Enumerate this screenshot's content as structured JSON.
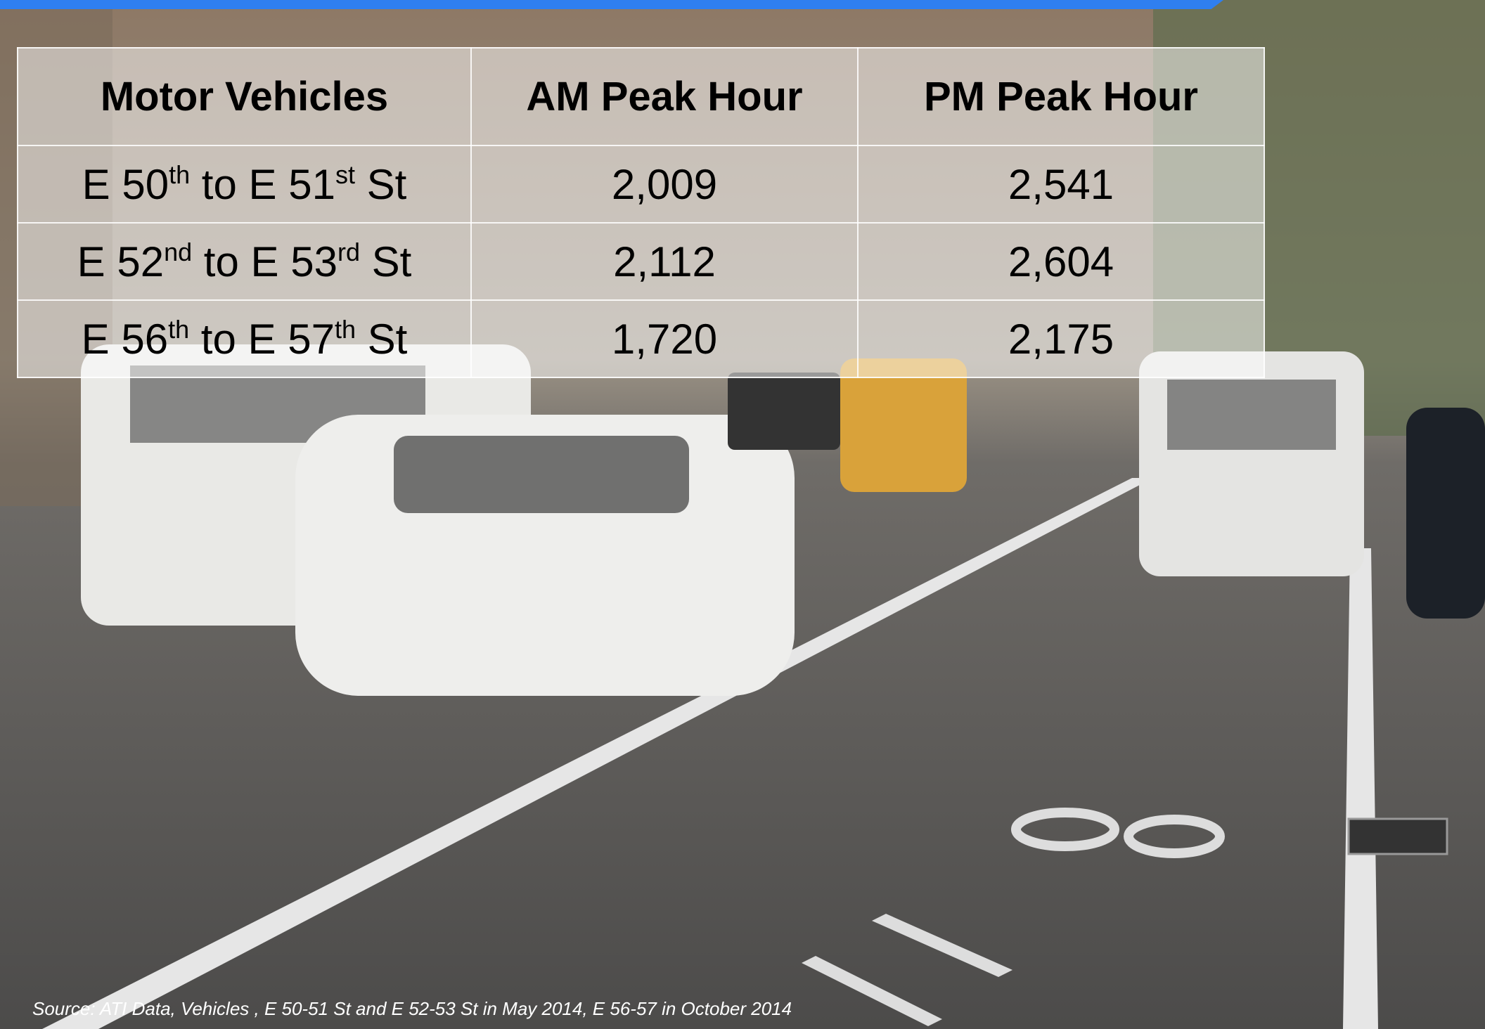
{
  "table": {
    "header": [
      "Motor Vehicles",
      "AM Peak Hour",
      "PM Peak Hour"
    ],
    "rows": [
      [
        [
          "E 50",
          "th",
          " to E 51",
          "st",
          " St"
        ],
        "2,009",
        "2,541"
      ],
      [
        [
          "E 52",
          "nd",
          " to E 53",
          "rd",
          " St"
        ],
        "2,112",
        "2,604"
      ],
      [
        [
          "E 56",
          "th",
          " to E 57",
          "th",
          " St"
        ],
        "1,720",
        "2,175"
      ]
    ]
  },
  "footnote": "Source: ATI Data, Vehicles , E 50-51 St and E 52-53 St in May 2014, E 56-57 in October 2014"
}
